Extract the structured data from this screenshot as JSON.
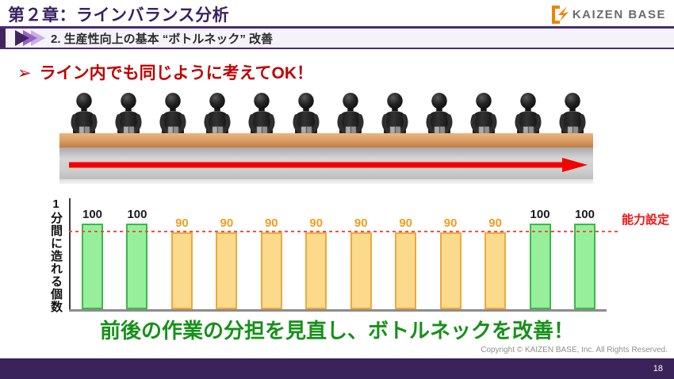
{
  "header": {
    "title": "第２章：ラインバランス分析",
    "brand": "KAIZEN BASE"
  },
  "subheader": {
    "label": "2. 生産性向上の基本 “ボトルネック” 改善"
  },
  "headline": {
    "bullet": "➢",
    "text": "ライン内でも同じように考えてOK！"
  },
  "illustration": {
    "worker_count": 12,
    "flow_direction": "right"
  },
  "chart_data": {
    "type": "bar",
    "values": [
      100,
      100,
      90,
      90,
      90,
      90,
      90,
      90,
      90,
      90,
      100,
      100
    ],
    "ylabel": "1分間に造れる個数",
    "ylim": [
      0,
      130
    ],
    "grid": false,
    "legend": false,
    "capacity_line": {
      "value": 90,
      "label": "能力設定"
    },
    "colors": {
      "high_fill": "#97EF9B",
      "high_border": "#3DB84A",
      "high_label": "#1A1A1A",
      "low_fill": "#FBDA8C",
      "low_border": "#F2A73B",
      "low_label": "#F29D1E"
    }
  },
  "message": {
    "text": "前後の作業の分担を見直し、ボトルネックを改善！"
  },
  "footer": {
    "copyright": "Copyright ©  KAIZEN BASE, Inc.  All Rights Reserved.",
    "page_number": "18"
  },
  "theme": {
    "purple_title": "#3A2262",
    "purple_rule": "#4A2C74",
    "purple_footer": "#39235A",
    "red_accent": "#C00000",
    "green_accent": "#169119",
    "brand_orange": "#F08300"
  }
}
